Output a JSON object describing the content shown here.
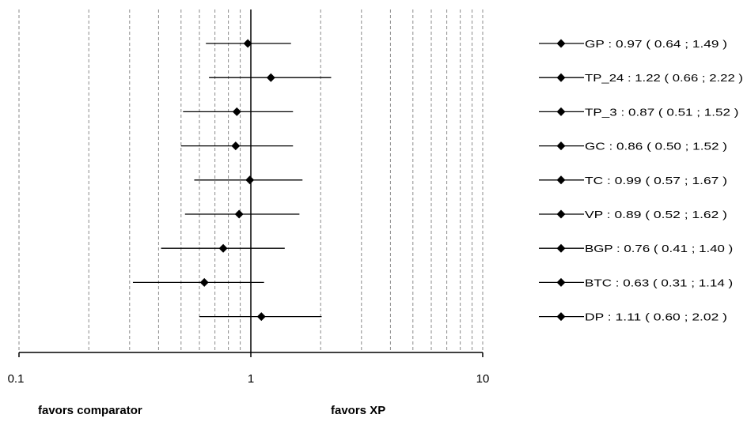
{
  "chart_data": {
    "type": "forest",
    "xscale": "log",
    "xlim": [
      0.1,
      10
    ],
    "tick_labels": [
      "0.1",
      "1",
      "10"
    ],
    "grid": true,
    "legend_position": "right",
    "footer_left": "favors comparator",
    "footer_right": "favors XP",
    "series": [
      {
        "name": "GP",
        "label": "GP : 0.97 ( 0.64 ; 1.49 )",
        "estimate": 0.97,
        "low": 0.64,
        "high": 1.49
      },
      {
        "name": "TP_24",
        "label": "TP_24 : 1.22 ( 0.66 ; 2.22 )",
        "estimate": 1.22,
        "low": 0.66,
        "high": 2.22
      },
      {
        "name": "TP_3",
        "label": "TP_3 : 0.87 ( 0.51 ; 1.52 )",
        "estimate": 0.87,
        "low": 0.51,
        "high": 1.52
      },
      {
        "name": "GC",
        "label": "GC : 0.86 ( 0.50 ; 1.52 )",
        "estimate": 0.86,
        "low": 0.5,
        "high": 1.52
      },
      {
        "name": "TC",
        "label": "TC : 0.99 ( 0.57 ; 1.67 )",
        "estimate": 0.99,
        "low": 0.57,
        "high": 1.67
      },
      {
        "name": "VP",
        "label": "VP : 0.89 ( 0.52 ; 1.62 )",
        "estimate": 0.89,
        "low": 0.52,
        "high": 1.62
      },
      {
        "name": "BGP",
        "label": "BGP : 0.76 ( 0.41 ; 1.40 )",
        "estimate": 0.76,
        "low": 0.41,
        "high": 1.4
      },
      {
        "name": "BTC",
        "label": "BTC : 0.63 ( 0.31 ; 1.14 )",
        "estimate": 0.63,
        "low": 0.31,
        "high": 1.14
      },
      {
        "name": "DP",
        "label": "DP : 1.11 ( 0.60 ; 2.02 )",
        "estimate": 1.11,
        "low": 0.6,
        "high": 2.02
      }
    ]
  }
}
